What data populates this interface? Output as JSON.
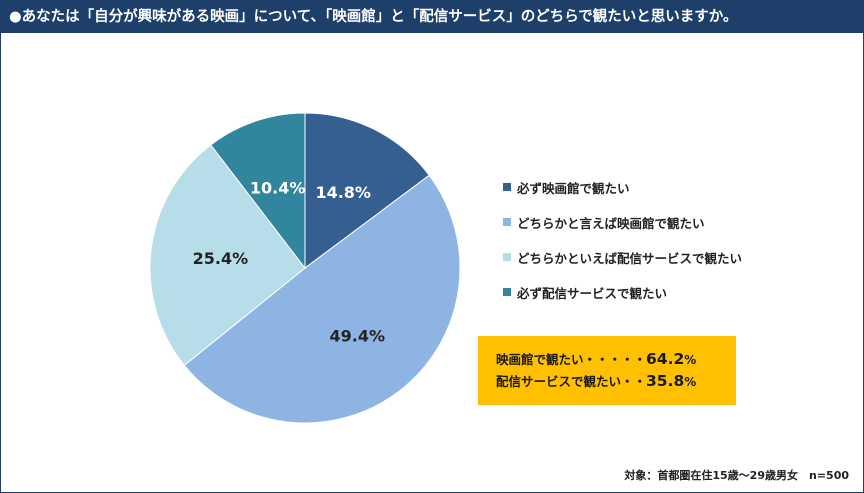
{
  "title": "●あなたは「自分が興味がある映画」について、「映画館」と「配信サービス」のどちらで観たいと思いますか。",
  "chart_data": {
    "type": "pie",
    "categories": [
      "必ず映画館で観たい",
      "どちらかと言えば映画館で観たい",
      "どちらかといえば配信サービスで観たい",
      "必ず配信サービスで観たい"
    ],
    "values": [
      14.8,
      49.4,
      25.4,
      10.4
    ],
    "value_labels": [
      "14.8%",
      "49.4%",
      "25.4%",
      "10.4%"
    ],
    "colors": [
      "#365f91",
      "#8eb4e3",
      "#b7dde8",
      "#31859c"
    ],
    "label_colors": [
      "#ffffff",
      "#222222",
      "#222222",
      "#ffffff"
    ],
    "legend_position": "right"
  },
  "summary": {
    "rows": [
      {
        "label": "映画館で観たい・・・・・",
        "value": "64.2",
        "unit": "%"
      },
      {
        "label": "配信サービスで観たい・・",
        "value": "35.8",
        "unit": "%"
      }
    ],
    "background": "#ffc000"
  },
  "footnote": "対象：首都圏在住15歳～29歳男女　n=500"
}
